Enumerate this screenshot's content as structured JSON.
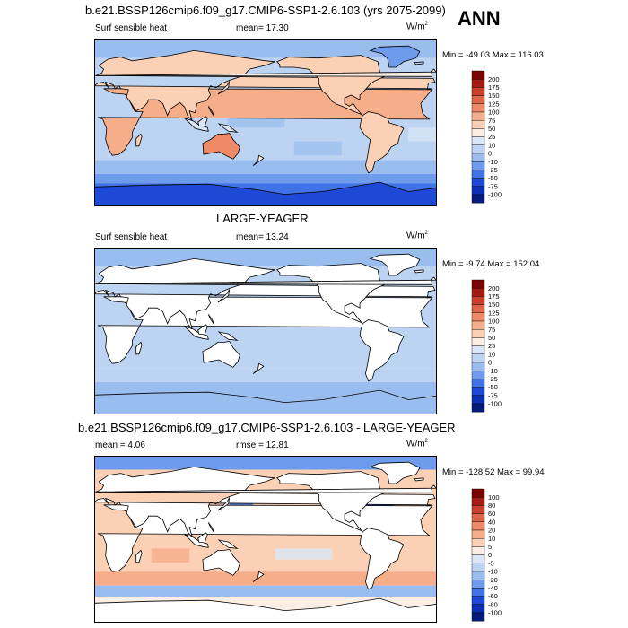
{
  "season": "ANN",
  "panels": [
    {
      "title": "b.e21.BSSP126cmip6.f09_g17.CMIP6-SSP1-2.6.103 (yrs 2075-2099)",
      "left_label": "Surf sensible heat",
      "center_label": "mean=  17.30",
      "units": "W/m",
      "units_sup": "2",
      "minmax": "Min = -49.03 Max = 116.03"
    },
    {
      "title": "LARGE-YEAGER",
      "left_label": "Surf sensible heat",
      "center_label": "mean=  13.24",
      "units": "W/m",
      "units_sup": "2",
      "minmax": "Min =  -9.74 Max = 152.04"
    },
    {
      "title": "b.e21.BSSP126cmip6.f09_g17.CMIP6-SSP1-2.6.103 - LARGE-YEAGER",
      "left_label": "mean =   4.06",
      "center_label": "rmse =  12.81",
      "units": "W/m",
      "units_sup": "2",
      "minmax": "Min = -128.52 Max =  99.94"
    }
  ],
  "chart_data": [
    {
      "type": "heatmap",
      "title": "b.e21.BSSP126cmip6.f09_g17.CMIP6-SSP1-2.6.103 (yrs 2075-2099)",
      "variable": "Surf sensible heat",
      "units": "W/m2",
      "mean": 17.3,
      "min": -49.03,
      "max": 116.03,
      "colorbar_levels": [
        200,
        175,
        150,
        125,
        100,
        75,
        50,
        25,
        10,
        0,
        -10,
        -25,
        -50,
        -75,
        -100
      ],
      "colorbar_colors": [
        "#7a0403",
        "#a31c10",
        "#c8402a",
        "#de6648",
        "#ee8a66",
        "#f6ad8a",
        "#fbd0b5",
        "#fbeee4",
        "#dbe7f7",
        "#bcd3f1",
        "#9abdf0",
        "#6f9bec",
        "#4073e6",
        "#1d49d6",
        "#0a2fb3",
        "#061a7a"
      ]
    },
    {
      "type": "heatmap",
      "title": "LARGE-YEAGER",
      "variable": "Surf sensible heat",
      "units": "W/m2",
      "mean": 13.24,
      "min": -9.74,
      "max": 152.04,
      "colorbar_levels": [
        200,
        175,
        150,
        125,
        100,
        75,
        50,
        25,
        10,
        0,
        -10,
        -25,
        -50,
        -75,
        -100
      ],
      "colorbar_colors": [
        "#7a0403",
        "#a31c10",
        "#c8402a",
        "#de6648",
        "#ee8a66",
        "#f6ad8a",
        "#fbd0b5",
        "#fbeee4",
        "#dbe7f7",
        "#bcd3f1",
        "#9abdf0",
        "#6f9bec",
        "#4073e6",
        "#1d49d6",
        "#0a2fb3",
        "#061a7a"
      ]
    },
    {
      "type": "heatmap",
      "title": "b.e21.BSSP126cmip6.f09_g17.CMIP6-SSP1-2.6.103 - LARGE-YEAGER",
      "units": "W/m2",
      "mean": 4.06,
      "rmse": 12.81,
      "min": -128.52,
      "max": 99.94,
      "colorbar_levels": [
        100,
        80,
        60,
        40,
        20,
        10,
        5,
        0,
        -5,
        -10,
        -20,
        -40,
        -60,
        -80,
        -100
      ],
      "colorbar_colors": [
        "#7a0403",
        "#a31c10",
        "#c8402a",
        "#de6648",
        "#ee8a66",
        "#f6ad8a",
        "#fbd0b5",
        "#fbeee4",
        "#dbe7f7",
        "#bcd3f1",
        "#9abdf0",
        "#6f9bec",
        "#4073e6",
        "#1d49d6",
        "#0a2fb3",
        "#061a7a"
      ]
    }
  ]
}
